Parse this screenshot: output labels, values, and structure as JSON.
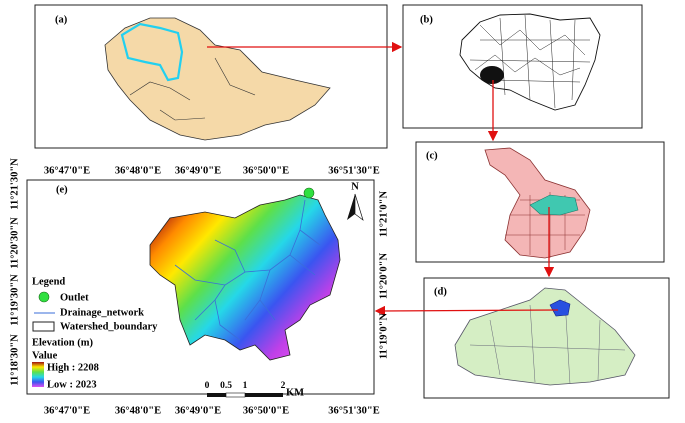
{
  "panels": {
    "a": "(a)",
    "b": "(b)",
    "c": "(c)",
    "d": "(d)",
    "e": "(e)"
  },
  "map_e": {
    "top_ticks": [
      "36°47'0\"E",
      "36°48'0\"E",
      "36°49'0\"E",
      "36°50'0\"E",
      "36°51'30\"E"
    ],
    "bottom_ticks": [
      "36°47'0\"E",
      "36°48'0\"E",
      "36°49'0\"E",
      "36°50'0\"E",
      "36°51'30\"E"
    ],
    "left_ticks": [
      "11°21'30\"N",
      "11°20'30\"N",
      "11°19'30\"N",
      "11°18'30\"N"
    ],
    "right_ticks": [
      "11°21'0\"N",
      "11°20'0\"N",
      "11°19'0\"N"
    ],
    "north": "N",
    "legend": {
      "title": "Legend",
      "outlet": "Outlet",
      "drainage": "Drainage_network",
      "boundary": "Watershed_boundary",
      "elevation_title": "Elevation (m)",
      "value_title": "Value",
      "high": "High : 2208",
      "low": "Low : 2023"
    },
    "scale_bar": {
      "labels": [
        "0",
        "0.5",
        "1",
        "2"
      ],
      "unit": "KM"
    }
  }
}
